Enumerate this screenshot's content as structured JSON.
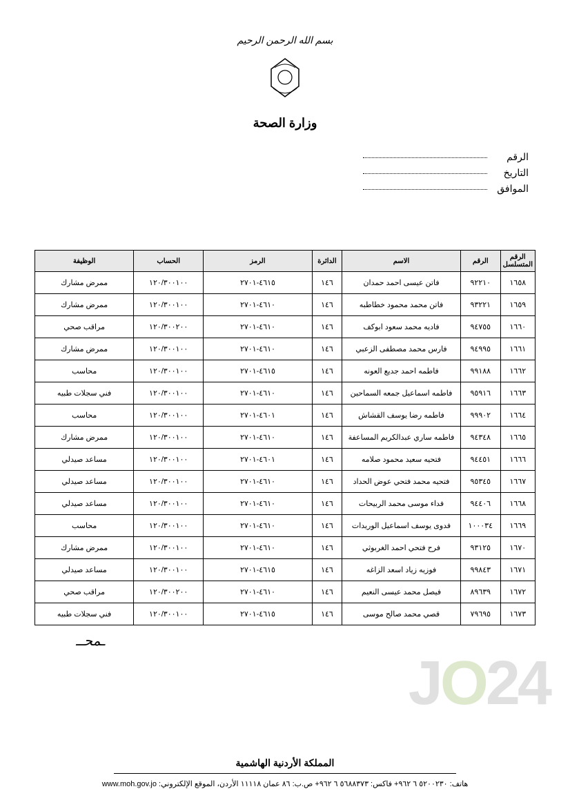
{
  "header": {
    "basmala": "بسم الله الرحمن الرحيم",
    "ministry": "وزارة الصحة"
  },
  "meta": {
    "number_label": "الرقم",
    "date_label": "التاريخ",
    "corresponding_label": "الموافق"
  },
  "table": {
    "columns": [
      "الرقم المتسلسل",
      "الرقم",
      "الاسم",
      "الدائرة",
      "الرمز",
      "الحساب",
      "الوظيفة"
    ],
    "rows": [
      {
        "seq": "١٦٥٨",
        "id": "٩٢٢١٠",
        "name": "فاتن عيسى احمد حمدان",
        "dept": "١٤٦",
        "code": "٤٦١٥-٢٧٠١",
        "acct": "١٢٠/٣٠٠١٠٠",
        "job": "ممرض مشارك"
      },
      {
        "seq": "١٦٥٩",
        "id": "٩٣٢٢١",
        "name": "فاتن محمد محمود خطاطبه",
        "dept": "١٤٦",
        "code": "٤٦١٠-٢٧٠١",
        "acct": "١٢٠/٣٠٠١٠٠",
        "job": "ممرض مشارك"
      },
      {
        "seq": "١٦٦٠",
        "id": "٩٤٧٥٥",
        "name": "فاديه محمد سعود ابوكف",
        "dept": "١٤٦",
        "code": "٤٦١٠-٢٧٠١",
        "acct": "١٢٠/٣٠٠٢٠٠",
        "job": "مراقب صحي"
      },
      {
        "seq": "١٦٦١",
        "id": "٩٤٩٩٥",
        "name": "فارس محمد مصطفى الزعبي",
        "dept": "١٤٦",
        "code": "٤٦١٠-٢٧٠١",
        "acct": "١٢٠/٣٠٠١٠٠",
        "job": "ممرض مشارك"
      },
      {
        "seq": "١٦٦٢",
        "id": "٩٩١٨٨",
        "name": "فاطمه احمد جديع العونه",
        "dept": "١٤٦",
        "code": "٤٦١٥-٢٧٠١",
        "acct": "١٢٠/٣٠٠١٠٠",
        "job": "محاسب"
      },
      {
        "seq": "١٦٦٣",
        "id": "٩٥٩١٦",
        "name": "فاطمه اسماعيل جمعه السماحين",
        "dept": "١٤٦",
        "code": "٤٦١٠-٢٧٠١",
        "acct": "١٢٠/٣٠٠١٠٠",
        "job": "فني سجلات طبيه"
      },
      {
        "seq": "١٦٦٤",
        "id": "٩٩٩٠٢",
        "name": "فاطمه رضا يوسف القشاش",
        "dept": "١٤٦",
        "code": "٤٦٠١-٢٧٠١",
        "acct": "١٢٠/٣٠٠١٠٠",
        "job": "محاسب"
      },
      {
        "seq": "١٦٦٥",
        "id": "٩٤٣٤٨",
        "name": "فاطمه ساري عبدالكريم المساعفة",
        "dept": "١٤٦",
        "code": "٤٦١٠-٢٧٠١",
        "acct": "١٢٠/٣٠٠١٠٠",
        "job": "ممرض مشارك"
      },
      {
        "seq": "١٦٦٦",
        "id": "٩٤٤٥١",
        "name": "فتحيه سعيد محمود صلامه",
        "dept": "١٤٦",
        "code": "٤٦٠١-٢٧٠١",
        "acct": "١٢٠/٣٠٠١٠٠",
        "job": "مساعد صيدلي"
      },
      {
        "seq": "١٦٦٧",
        "id": "٩٥٣٤٥",
        "name": "فتحيه محمد فتحي عوض الحداد",
        "dept": "١٤٦",
        "code": "٤٦١٠-٢٧٠١",
        "acct": "١٢٠/٣٠٠١٠٠",
        "job": "مساعد صيدلي"
      },
      {
        "seq": "١٦٦٨",
        "id": "٩٤٤٠٦",
        "name": "فداء موسى محمد الربيحات",
        "dept": "١٤٦",
        "code": "٤٦١٠-٢٧٠١",
        "acct": "١٢٠/٣٠٠١٠٠",
        "job": "مساعد صيدلي"
      },
      {
        "seq": "١٦٦٩",
        "id": "١٠٠٠٣٤",
        "name": "فدوى يوسف اسماعيل الوريدات",
        "dept": "١٤٦",
        "code": "٤٦١٠-٢٧٠١",
        "acct": "١٢٠/٣٠٠١٠٠",
        "job": "محاسب"
      },
      {
        "seq": "١٦٧٠",
        "id": "٩٣١٢٥",
        "name": "فرح فتحي احمد الغربوثي",
        "dept": "١٤٦",
        "code": "٤٦١٠-٢٧٠١",
        "acct": "١٢٠/٣٠٠١٠٠",
        "job": "ممرض مشارك"
      },
      {
        "seq": "١٦٧١",
        "id": "٩٩٨٤٣",
        "name": "فوزيه زياد اسعد الزاغه",
        "dept": "١٤٦",
        "code": "٤٦١٥-٢٧٠١",
        "acct": "١٢٠/٣٠٠١٠٠",
        "job": "مساعد صيدلي"
      },
      {
        "seq": "١٦٧٢",
        "id": "٨٩٦٣٩",
        "name": "فيصل محمد عيسى النعيم",
        "dept": "١٤٦",
        "code": "٤٦١٠-٢٧٠١",
        "acct": "١٢٠/٣٠٠٢٠٠",
        "job": "مراقب صحي"
      },
      {
        "seq": "١٦٧٣",
        "id": "٧٩٦٩٥",
        "name": "قصي محمد صالح موسى",
        "dept": "١٤٦",
        "code": "٤٦١٥-٢٧٠١",
        "acct": "١٢٠/٣٠٠١٠٠",
        "job": "فني سجلات طبيه"
      }
    ]
  },
  "watermark": {
    "j": "J",
    "o": "O",
    "two": "2",
    "four": "4"
  },
  "footer": {
    "kingdom": "المملكة الأردنية الهاشمية",
    "contact": "هاتف: ٥٢٠٠٢٣٠ ٦ ٩٦٢+ فاكس: ٥٦٨٨٣٧٣ ٦ ٩٦٢+ ص.ب: ٨٦ عمان ١١١١٨ الأردن، الموقع الإلكتروني:",
    "url": "www.moh.gov.jo"
  }
}
